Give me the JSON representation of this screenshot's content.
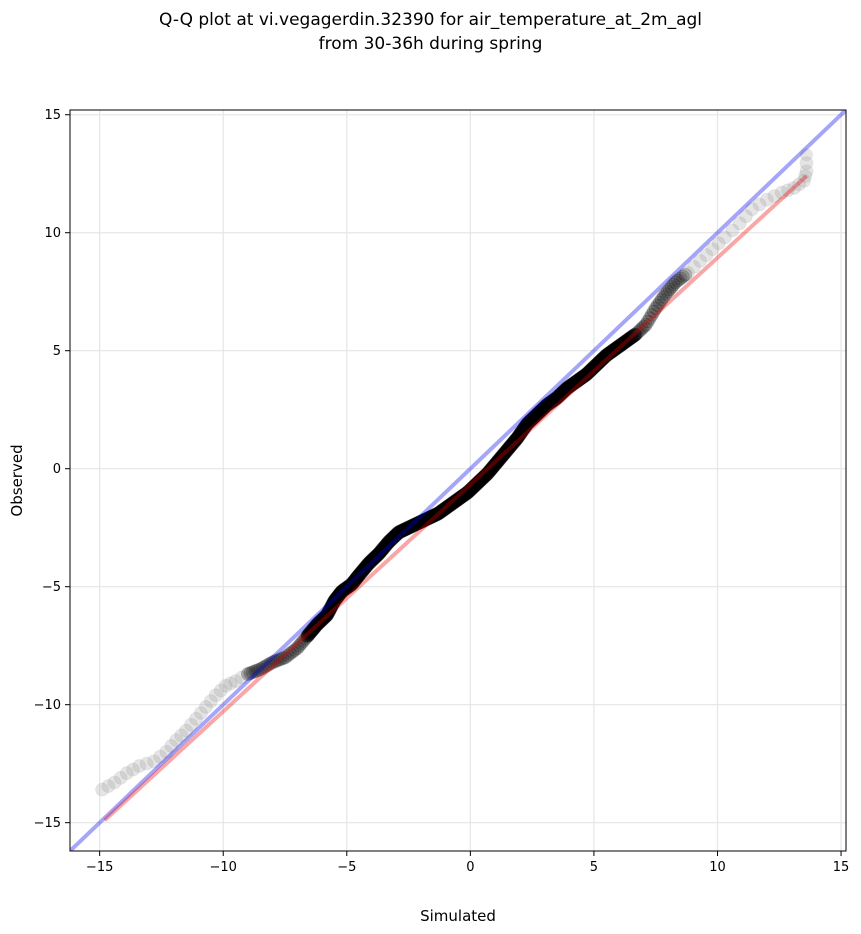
{
  "chart_data": {
    "type": "scatter",
    "title": "Q-Q plot at vi.vegagerdin.32390 for air_temperature_at_2m_agl",
    "subtitle": "from 30-36h during spring",
    "xlabel": "Simulated",
    "ylabel": "Observed",
    "xlim": [
      -16.2,
      15.2
    ],
    "ylim": [
      -16.2,
      15.2
    ],
    "xticks": [
      -15,
      -10,
      -5,
      0,
      5,
      10,
      15
    ],
    "yticks": [
      -15,
      -10,
      -5,
      0,
      5,
      10,
      15
    ],
    "xtick_labels": [
      "−15",
      "−10",
      "−5",
      "0",
      "5",
      "10",
      "15"
    ],
    "ytick_labels": [
      "−15",
      "−10",
      "−5",
      "0",
      "5",
      "10",
      "15"
    ],
    "grid": true,
    "colors": {
      "identity_line": "#0000ee",
      "fit_line": "#ee0000",
      "points_tail": "#999999",
      "points_core": "#1a1a1a",
      "points_center": "#000000"
    },
    "identity_line": {
      "x": [
        -16.2,
        15.2
      ],
      "y": [
        -16.2,
        15.2
      ]
    },
    "fit_line": {
      "x": [
        -14.8,
        13.6
      ],
      "y": [
        -14.9,
        12.4
      ]
    },
    "qq_curve": [
      [
        -14.9,
        -13.6
      ],
      [
        -14.4,
        -13.3
      ],
      [
        -13.9,
        -12.9
      ],
      [
        -13.4,
        -12.6
      ],
      [
        -12.8,
        -12.4
      ],
      [
        -12.3,
        -12.0
      ],
      [
        -11.9,
        -11.5
      ],
      [
        -11.5,
        -11.1
      ],
      [
        -11.1,
        -10.6
      ],
      [
        -10.7,
        -10.1
      ],
      [
        -10.3,
        -9.6
      ],
      [
        -9.9,
        -9.2
      ],
      [
        -9.5,
        -9.0
      ],
      [
        -9.0,
        -8.7
      ],
      [
        -8.5,
        -8.5
      ],
      [
        -8.0,
        -8.2
      ],
      [
        -7.5,
        -8.0
      ],
      [
        -7.0,
        -7.6
      ],
      [
        -6.6,
        -7.1
      ],
      [
        -6.2,
        -6.6
      ],
      [
        -5.8,
        -6.2
      ],
      [
        -5.5,
        -5.6
      ],
      [
        -5.2,
        -5.2
      ],
      [
        -4.8,
        -4.9
      ],
      [
        -4.5,
        -4.5
      ],
      [
        -4.1,
        -4.0
      ],
      [
        -3.7,
        -3.6
      ],
      [
        -3.3,
        -3.1
      ],
      [
        -2.9,
        -2.7
      ],
      [
        -2.5,
        -2.5
      ],
      [
        -2.1,
        -2.3
      ],
      [
        -1.7,
        -2.1
      ],
      [
        -1.3,
        -1.9
      ],
      [
        -0.9,
        -1.6
      ],
      [
        -0.5,
        -1.3
      ],
      [
        -0.1,
        -1.0
      ],
      [
        0.3,
        -0.6
      ],
      [
        0.7,
        -0.2
      ],
      [
        1.1,
        0.3
      ],
      [
        1.5,
        0.8
      ],
      [
        1.9,
        1.3
      ],
      [
        2.3,
        1.9
      ],
      [
        2.7,
        2.3
      ],
      [
        3.1,
        2.7
      ],
      [
        3.5,
        3.0
      ],
      [
        3.9,
        3.4
      ],
      [
        4.3,
        3.7
      ],
      [
        4.7,
        4.0
      ],
      [
        5.1,
        4.4
      ],
      [
        5.5,
        4.8
      ],
      [
        5.9,
        5.1
      ],
      [
        6.3,
        5.4
      ],
      [
        6.7,
        5.7
      ],
      [
        7.1,
        6.1
      ],
      [
        7.5,
        6.8
      ],
      [
        7.9,
        7.4
      ],
      [
        8.3,
        7.9
      ],
      [
        8.8,
        8.3
      ],
      [
        9.3,
        8.8
      ],
      [
        9.8,
        9.3
      ],
      [
        10.3,
        9.8
      ],
      [
        10.9,
        10.4
      ],
      [
        11.4,
        11.0
      ],
      [
        12.0,
        11.4
      ],
      [
        12.6,
        11.7
      ],
      [
        13.1,
        11.9
      ],
      [
        13.5,
        12.2
      ],
      [
        13.6,
        12.6
      ],
      [
        13.6,
        13.3
      ]
    ]
  }
}
